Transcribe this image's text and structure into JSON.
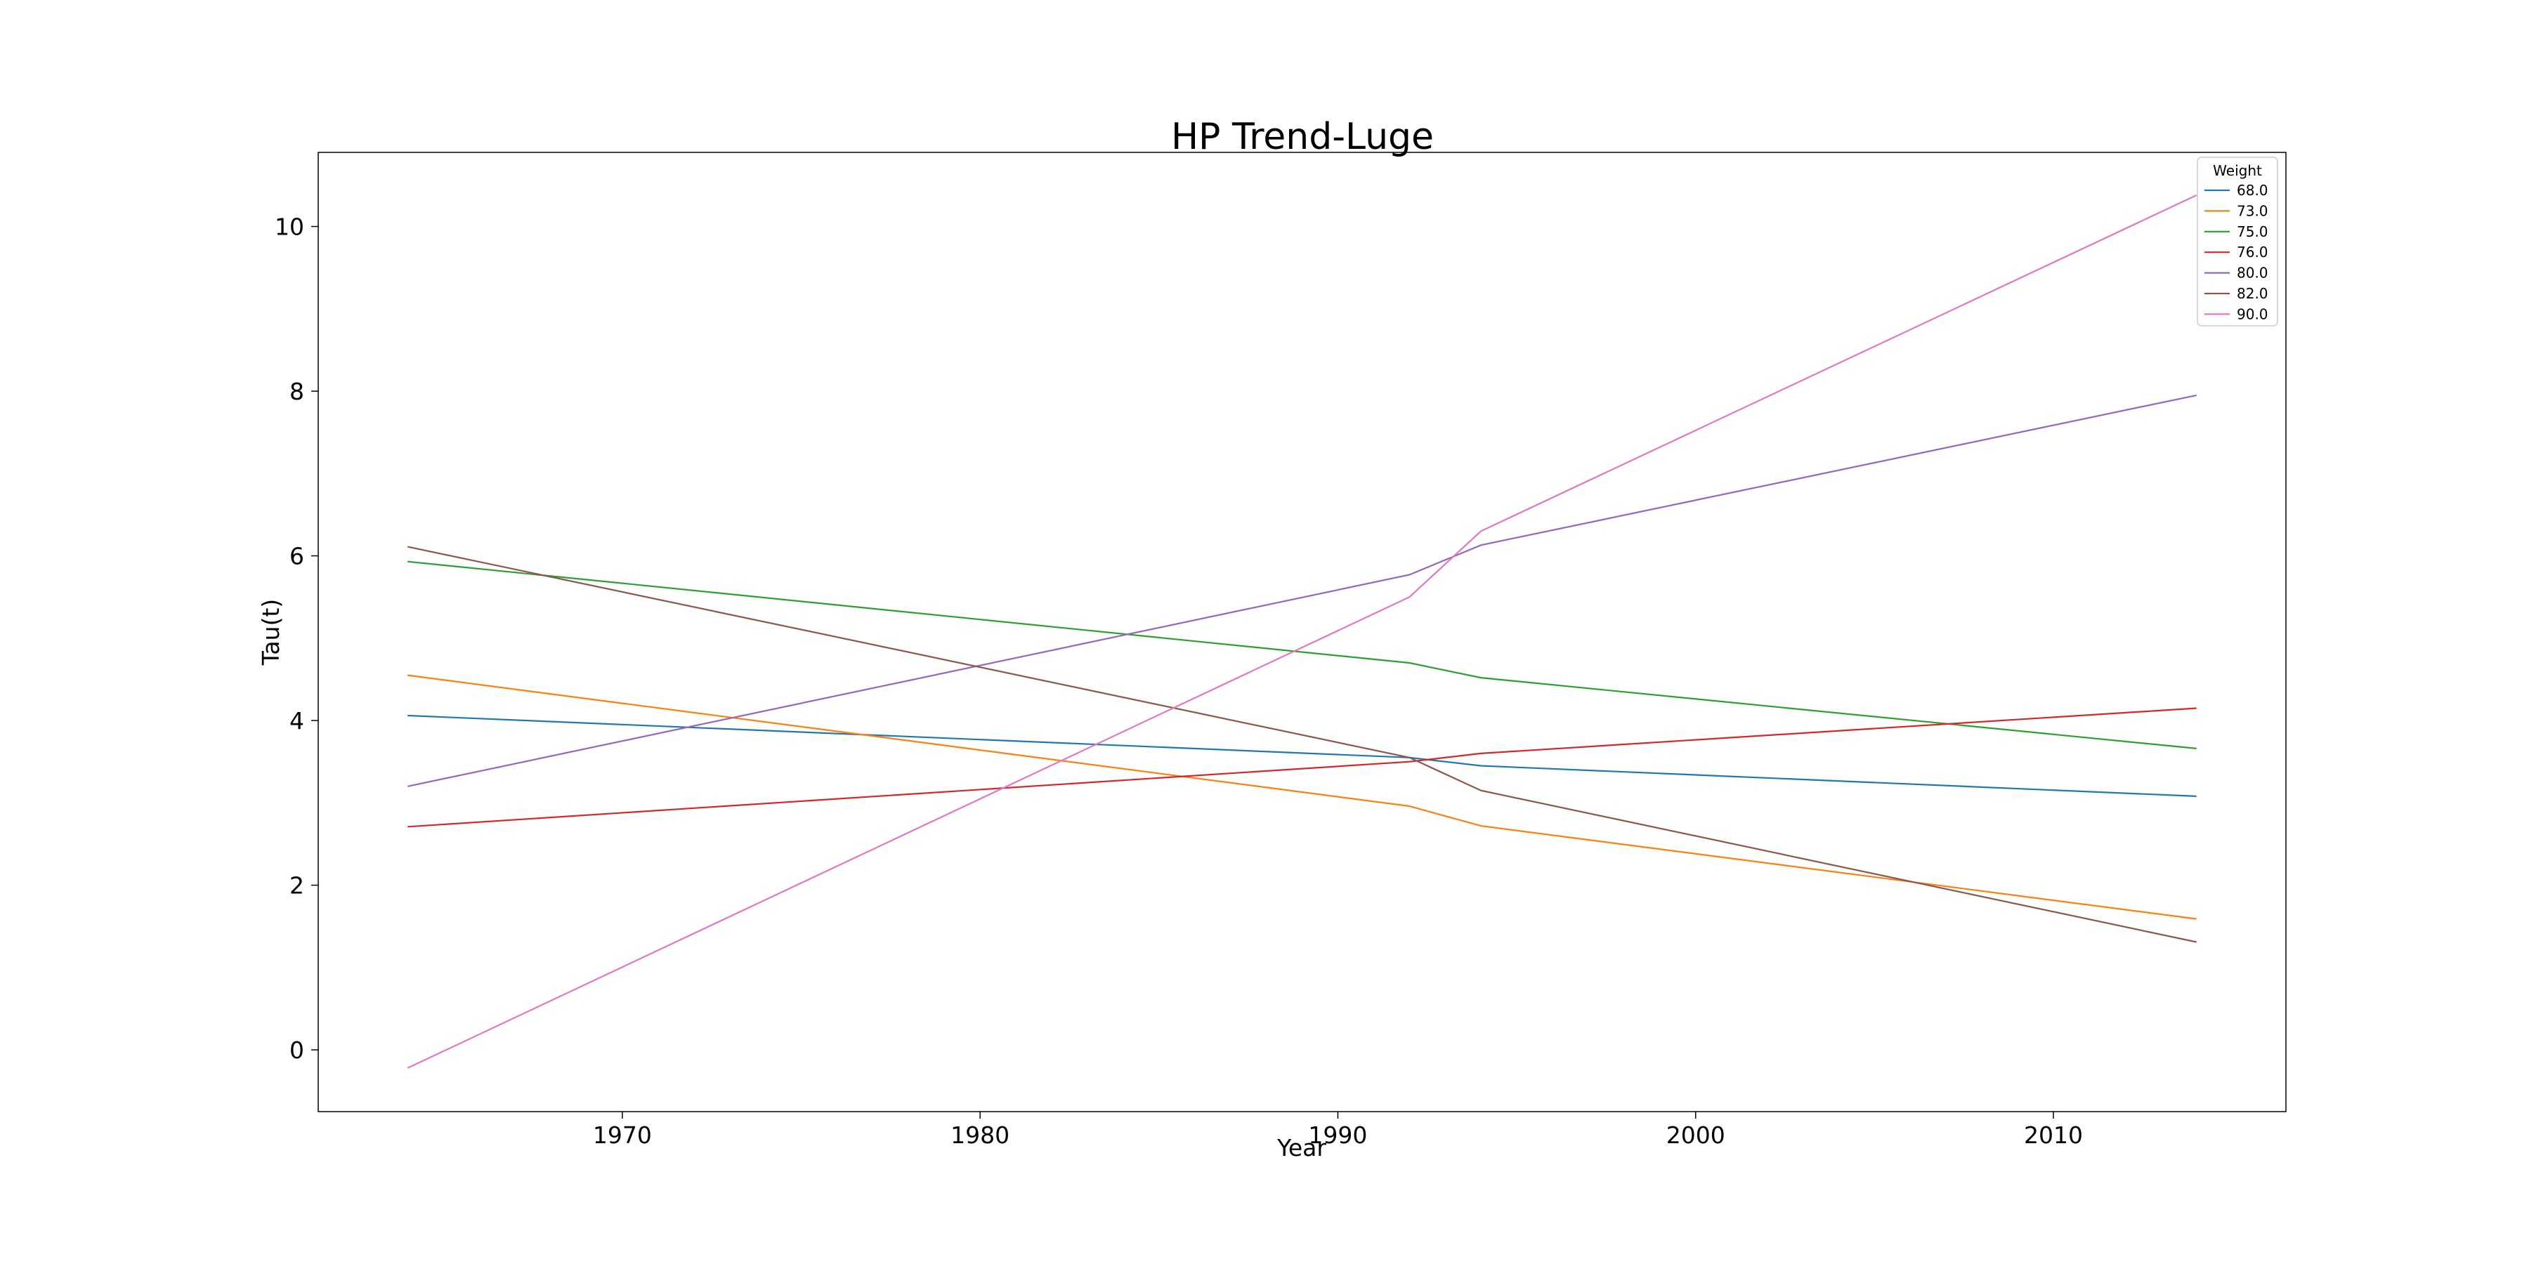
{
  "chart_data": {
    "type": "line",
    "title": "HP Trend-Luge",
    "xlabel": "Year",
    "ylabel": "Tau(t)",
    "xlim": [
      1961.5,
      2016.5
    ],
    "ylim": [
      -0.75,
      10.9
    ],
    "xticks": [
      1970,
      1980,
      1990,
      2000,
      2010
    ],
    "yticks": [
      0,
      2,
      4,
      6,
      8,
      10
    ],
    "grid": false,
    "legend": {
      "title": "Weight",
      "placement": "top-right"
    },
    "x": [
      1964,
      1992,
      1994,
      2014
    ],
    "series": [
      {
        "name": "68.0",
        "color": "#1f77b4",
        "values": [
          4.06,
          3.55,
          3.45,
          3.08
        ]
      },
      {
        "name": "73.0",
        "color": "#ff7f0e",
        "values": [
          4.55,
          2.96,
          2.72,
          1.59
        ]
      },
      {
        "name": "75.0",
        "color": "#2ca02c",
        "values": [
          5.93,
          4.7,
          4.52,
          3.66
        ]
      },
      {
        "name": "76.0",
        "color": "#d62728",
        "values": [
          2.71,
          3.5,
          3.6,
          4.15
        ]
      },
      {
        "name": "80.0",
        "color": "#9467bd",
        "values": [
          3.2,
          5.77,
          6.13,
          7.95
        ]
      },
      {
        "name": "82.0",
        "color": "#8c564b",
        "values": [
          6.11,
          3.55,
          3.15,
          1.31
        ]
      },
      {
        "name": "90.0",
        "color": "#e377c2",
        "values": [
          -0.22,
          5.5,
          6.3,
          10.38
        ]
      }
    ]
  }
}
